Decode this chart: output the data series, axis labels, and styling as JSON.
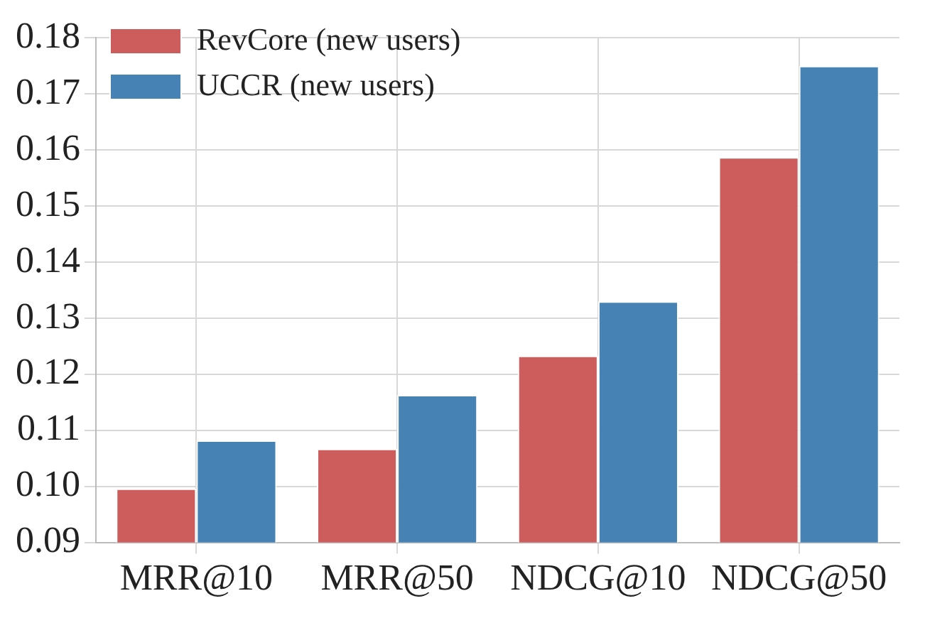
{
  "chart_data": {
    "type": "bar",
    "categories": [
      "MRR@10",
      "MRR@50",
      "NDCG@10",
      "NDCG@50"
    ],
    "series": [
      {
        "name": "RevCore (new users)",
        "color": "#cd5c5c",
        "values": [
          0.0996,
          0.1067,
          0.1233,
          0.1587
        ]
      },
      {
        "name": "UCCR (new users)",
        "color": "#4682b4",
        "values": [
          0.1082,
          0.1163,
          0.133,
          0.175
        ]
      }
    ],
    "ylim": [
      0.09,
      0.18
    ],
    "yticks": [
      {
        "value": 0.09,
        "label": "0.09"
      },
      {
        "value": 0.1,
        "label": "0.10"
      },
      0.11,
      0.12,
      0.13,
      0.14,
      0.15,
      0.16,
      0.17,
      0.18
    ],
    "grid": true,
    "legend": "top left"
  }
}
